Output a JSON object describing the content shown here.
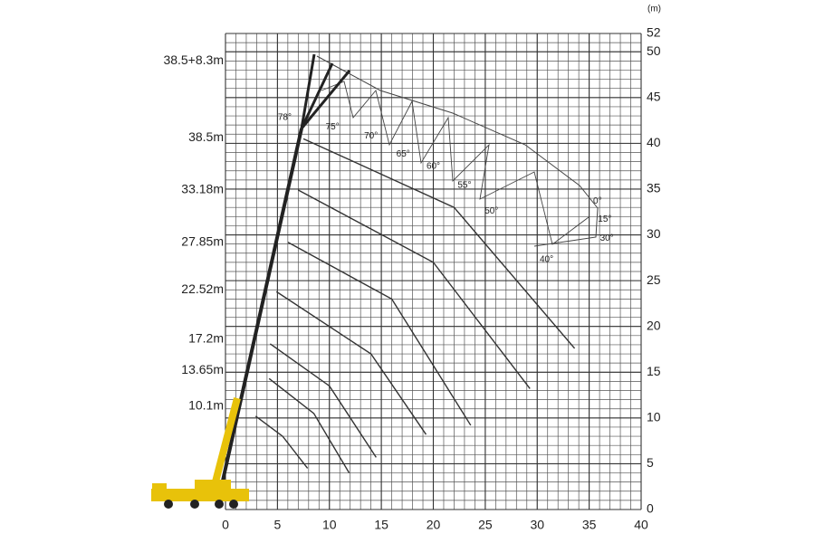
{
  "chart_data": {
    "type": "line",
    "y_unit": "(m)",
    "xlim": [
      0,
      40
    ],
    "xticks": [
      0,
      5,
      10,
      15,
      20,
      25,
      30,
      35,
      40
    ],
    "ylim": [
      0,
      52
    ],
    "yticks": [
      0,
      5,
      10,
      15,
      20,
      25,
      30,
      35,
      40,
      45,
      50,
      52
    ],
    "grid": true,
    "boom_labels": [
      {
        "value": 11.3,
        "label": "10.1m"
      },
      {
        "value": 15.2,
        "label": "13.65m"
      },
      {
        "value": 18.6,
        "label": "17.2m"
      },
      {
        "value": 24,
        "label": "22.52m"
      },
      {
        "value": 29.2,
        "label": "27.85m"
      },
      {
        "value": 34.9,
        "label": "33.18m"
      },
      {
        "value": 40.6,
        "label": "38.5m"
      },
      {
        "value": 49,
        "label": "38.5+8.3m"
      }
    ],
    "series": [
      {
        "color": "#333333",
        "x": [
          2.9,
          5.5,
          7.9
        ],
        "values": [
          10.2,
          8,
          4.5
        ]
      },
      {
        "color": "#333333",
        "x": [
          4.2,
          8.5,
          11.9
        ],
        "values": [
          14.3,
          10.5,
          4
        ]
      },
      {
        "color": "#333333",
        "x": [
          4.3,
          10,
          14.5
        ],
        "values": [
          18.1,
          13.5,
          5.7
        ]
      },
      {
        "color": "#333333",
        "x": [
          4.9,
          14,
          19.3
        ],
        "values": [
          23.8,
          17,
          8.2
        ]
      },
      {
        "color": "#333333",
        "x": [
          6,
          16,
          23.6
        ],
        "values": [
          29.2,
          23,
          9.2
        ]
      },
      {
        "color": "#333333",
        "x": [
          7,
          20,
          29.3
        ],
        "values": [
          34.9,
          27,
          13.2
        ]
      },
      {
        "color": "#333333",
        "x": [
          7.5,
          22,
          33.6
        ],
        "values": [
          40.5,
          33,
          17.6
        ]
      }
    ],
    "angle_labels": [
      {
        "label": "78°",
        "x": 5.7,
        "y": 42.8
      },
      {
        "label": "75°",
        "x": 10.3,
        "y": 41.8
      },
      {
        "label": "70°",
        "x": 14,
        "y": 40.8
      },
      {
        "label": "65°",
        "x": 17.1,
        "y": 38.8
      },
      {
        "label": "60°",
        "x": 20,
        "y": 37.5
      },
      {
        "label": "55°",
        "x": 23,
        "y": 35.4
      },
      {
        "label": "50°",
        "x": 25.6,
        "y": 32.6
      },
      {
        "label": "40°",
        "x": 30.9,
        "y": 27.3
      },
      {
        "label": "30°",
        "x": 36.7,
        "y": 29.6
      },
      {
        "label": "15°",
        "x": 36.5,
        "y": 31.7
      },
      {
        "label": "0°",
        "x": 35.8,
        "y": 33.7
      }
    ]
  }
}
